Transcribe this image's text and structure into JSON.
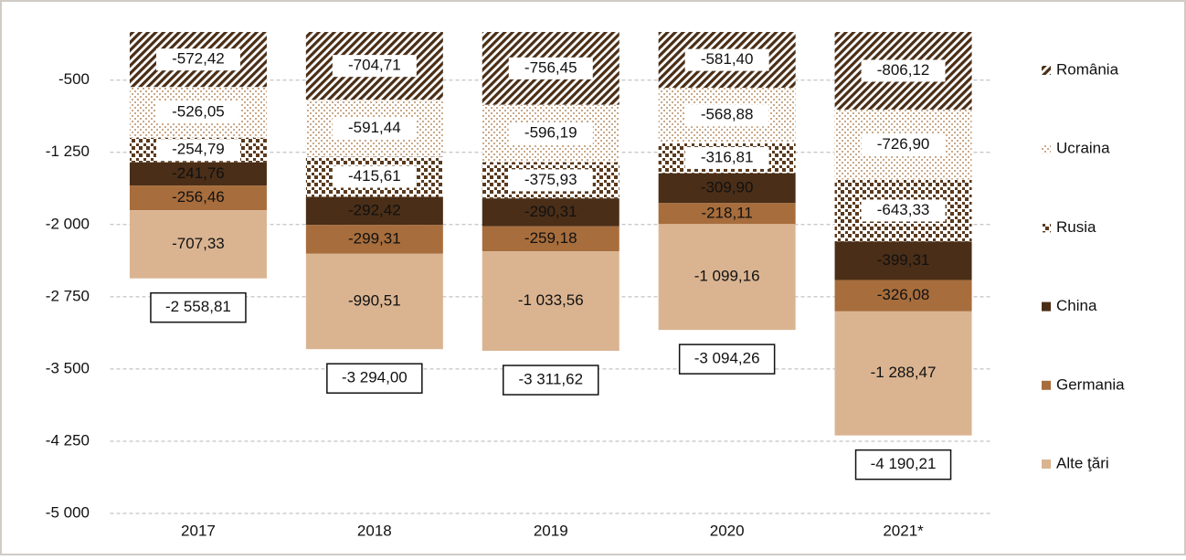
{
  "chart_data": {
    "type": "stacked_bar",
    "categories": [
      "2017",
      "2018",
      "2019",
      "2020",
      "2021*"
    ],
    "ylim": [
      -5000,
      0
    ],
    "yticks": [
      {
        "value": -500,
        "label": "-500"
      },
      {
        "value": -1250,
        "label": "-1 250"
      },
      {
        "value": -2000,
        "label": "-2 000"
      },
      {
        "value": -2750,
        "label": "-2 750"
      },
      {
        "value": -3500,
        "label": "-3 500"
      },
      {
        "value": -4250,
        "label": "-4 250"
      },
      {
        "value": -5000,
        "label": "-5 000"
      }
    ],
    "grid": true,
    "legend": "right",
    "series": [
      {
        "name": "România",
        "color": "#4a2e17",
        "pattern": "diagonal",
        "values": [
          -572.42,
          -704.71,
          -756.45,
          -581.4,
          -806.12
        ],
        "value_labels": [
          "-572,42",
          "-704,71",
          "-756,45",
          "-581,40",
          "-806,12"
        ]
      },
      {
        "name": "Ucraina",
        "color": "#c9a98a",
        "pattern": "dots",
        "values": [
          -526.05,
          -591.44,
          -596.19,
          -568.88,
          -726.9
        ],
        "value_labels": [
          "-526,05",
          "-591,44",
          "-596,19",
          "-568,88",
          "-726,90"
        ]
      },
      {
        "name": "Rusia",
        "color": "#5a3a1e",
        "pattern": "checker",
        "values": [
          -254.79,
          -415.61,
          -375.93,
          -316.81,
          -643.33
        ],
        "value_labels": [
          "-254,79",
          "-415,61",
          "-375,93",
          "-316,81",
          "-643,33"
        ]
      },
      {
        "name": "China",
        "color": "#4a2e17",
        "values": [
          -241.76,
          -292.42,
          -290.31,
          -309.9,
          -399.31
        ],
        "value_labels": [
          "-241,76",
          "-292,42",
          "-290,31",
          "-309,90",
          "-399,31"
        ]
      },
      {
        "name": "Germania",
        "color": "#a76d3c",
        "values": [
          -256.46,
          -299.31,
          -259.18,
          -218.11,
          -326.08
        ],
        "value_labels": [
          "-256,46",
          "-299,31",
          "-259,18",
          "-218,11",
          "-326,08"
        ]
      },
      {
        "name": "Alte ţări",
        "color": "#dab491",
        "values": [
          -707.33,
          -990.51,
          -1033.56,
          -1099.16,
          -1288.47
        ],
        "value_labels": [
          "-707,33",
          "-990,51",
          "-1 033,56",
          "-1 099,16",
          "-1 288,47"
        ]
      }
    ],
    "totals": [
      -2558.81,
      -3294.0,
      -3311.62,
      -3094.26,
      -4190.21
    ],
    "total_labels": [
      "-2 558,81",
      "-3 294,00",
      "-3 311,62",
      "-3 094,26",
      "-4 190,21"
    ]
  }
}
